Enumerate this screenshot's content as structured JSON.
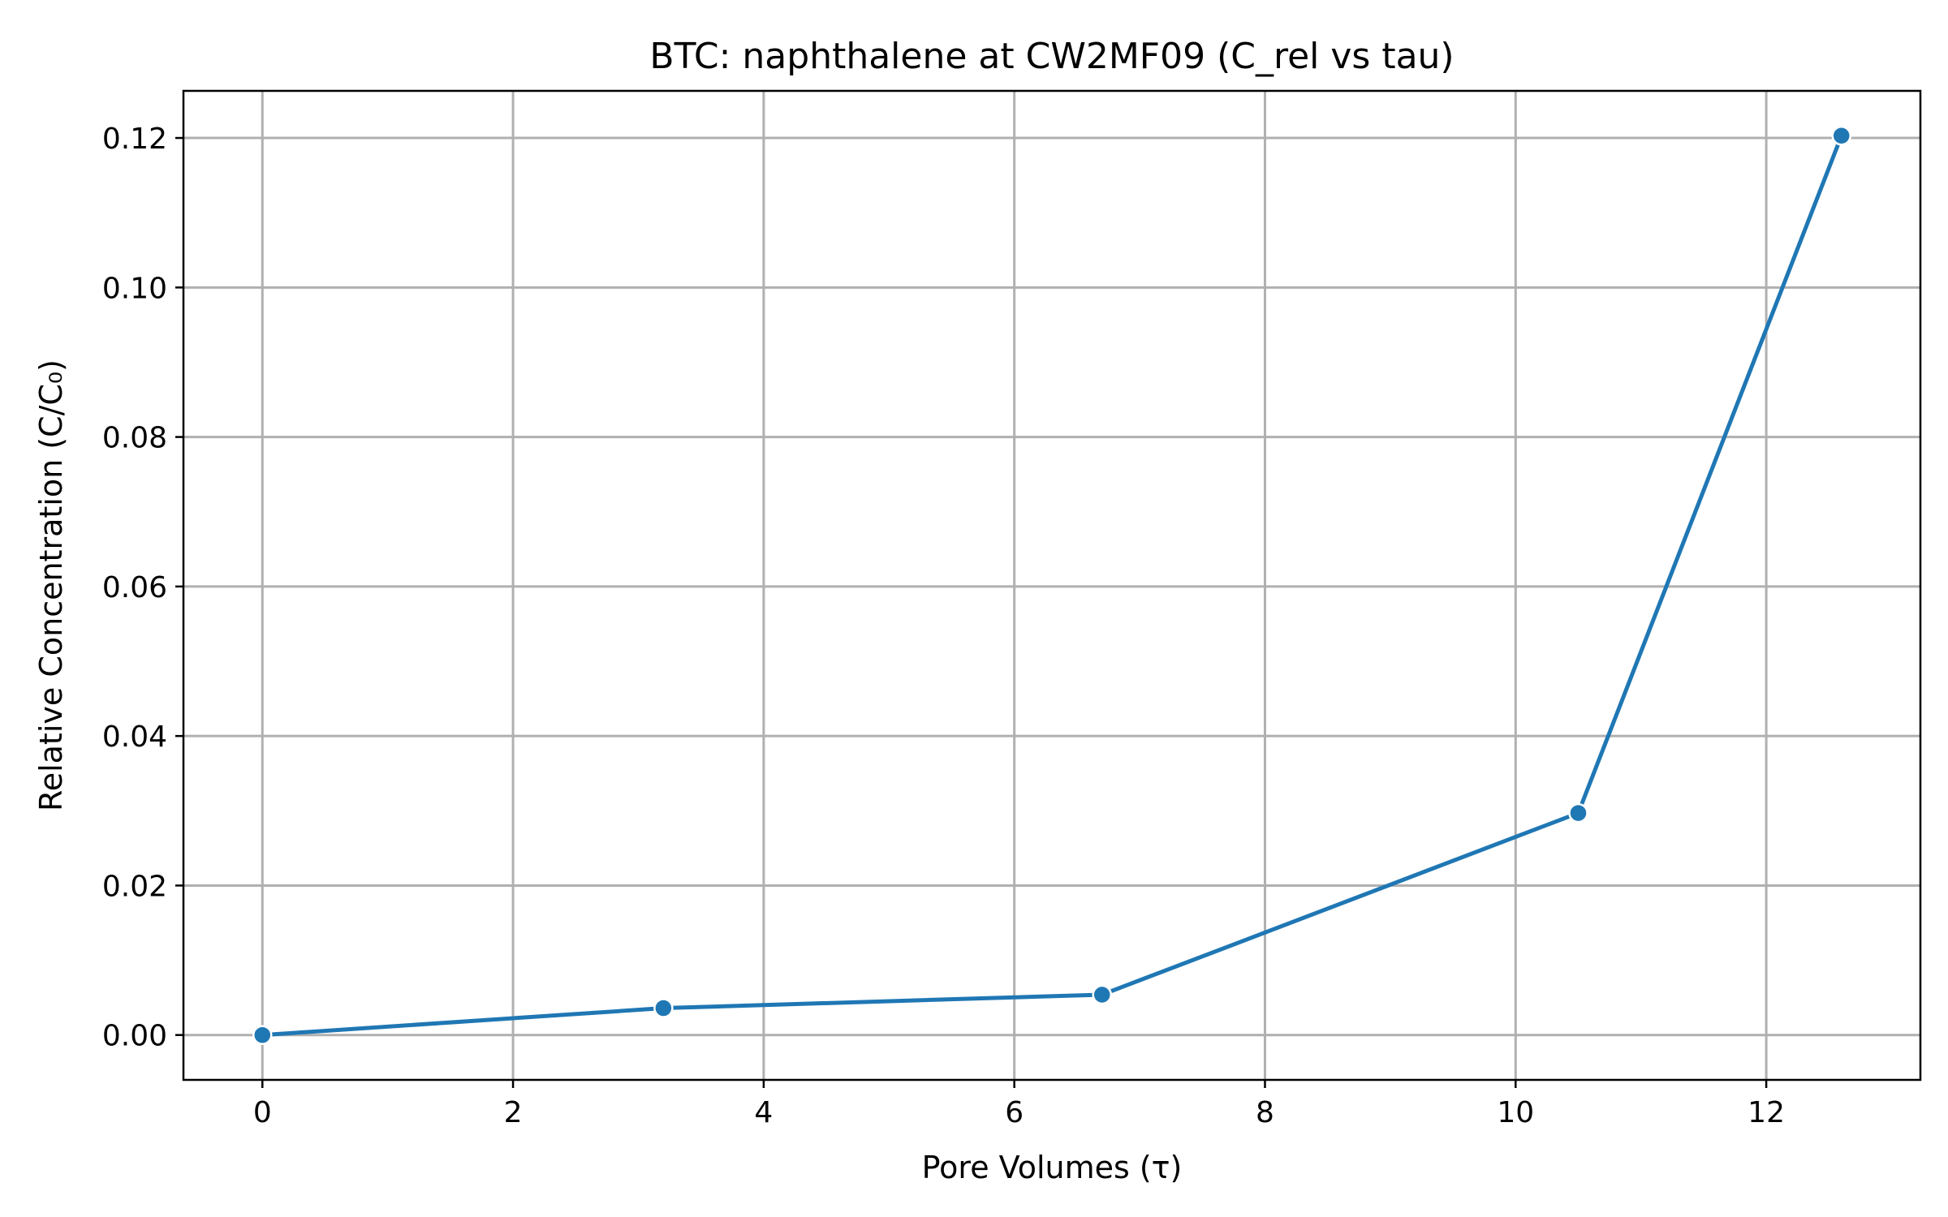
{
  "chart_data": {
    "type": "line",
    "title": "BTC: naphthalene at CW2MF09 (C_rel vs tau)",
    "xlabel": "Pore Volumes (τ)",
    "ylabel": "Relative Concentration (C/C₀)",
    "xlim": [
      -0.63,
      13.23
    ],
    "ylim": [
      -0.006,
      0.1263
    ],
    "x_ticks": [
      0,
      2,
      4,
      6,
      8,
      10,
      12
    ],
    "x_tick_labels": [
      "0",
      "2",
      "4",
      "6",
      "8",
      "10",
      "12"
    ],
    "y_ticks": [
      0.0,
      0.02,
      0.04,
      0.06,
      0.08,
      0.1,
      0.12
    ],
    "y_tick_labels": [
      "0.00",
      "0.02",
      "0.04",
      "0.06",
      "0.08",
      "0.10",
      "0.12"
    ],
    "grid": true,
    "series": [
      {
        "name": "naphthalene",
        "color": "#1f77b4",
        "marker": "circle",
        "x": [
          0,
          3.2,
          6.7,
          10.5,
          12.6
        ],
        "y": [
          0.0,
          0.0036,
          0.0054,
          0.0297,
          0.1203
        ]
      }
    ]
  }
}
